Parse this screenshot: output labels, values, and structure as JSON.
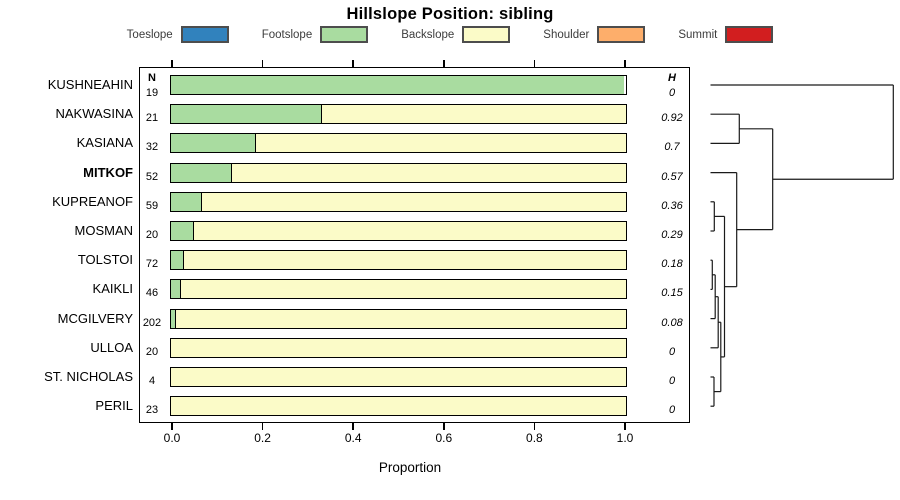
{
  "title": "Hillslope Position: sibling",
  "xlabel": "Proportion",
  "columns": {
    "n_header": "N",
    "h_header": "H"
  },
  "x_ticks": [
    "0.0",
    "0.2",
    "0.4",
    "0.6",
    "0.8",
    "1.0"
  ],
  "colors": {
    "toeslope": "#3182BD",
    "footslope": "#A9DCA0",
    "backslope": "#FBFBC8",
    "shoulder": "#FDAE6B",
    "summit": "#D21E1F",
    "bar_border": "#000000",
    "dendrogram_line": "#1a1a1a"
  },
  "legend": {
    "items": [
      {
        "label": "Toeslope",
        "color_key": "toeslope"
      },
      {
        "label": "Footslope",
        "color_key": "footslope"
      },
      {
        "label": "Backslope",
        "color_key": "backslope"
      },
      {
        "label": "Shoulder",
        "color_key": "shoulder"
      },
      {
        "label": "Summit",
        "color_key": "summit"
      }
    ]
  },
  "chart_data": {
    "type": "bar",
    "orientation": "horizontal-stacked",
    "title": "Hillslope Position: sibling",
    "xlabel": "Proportion",
    "xlim": [
      0,
      1
    ],
    "x_tick_values": [
      0.0,
      0.2,
      0.4,
      0.6,
      0.8,
      1.0
    ],
    "stack_categories": [
      "Toeslope",
      "Footslope",
      "Backslope",
      "Shoulder",
      "Summit"
    ],
    "rows": [
      {
        "label": "KUSHNEAHIN",
        "n": "19",
        "h": "0",
        "bold": false,
        "footslope": 1.0,
        "backslope": 0.0
      },
      {
        "label": "NAKWASINA",
        "n": "21",
        "h": "0.92",
        "bold": false,
        "footslope": 0.333,
        "backslope": 0.667
      },
      {
        "label": "KASIANA",
        "n": "32",
        "h": "0.7",
        "bold": false,
        "footslope": 0.188,
        "backslope": 0.812
      },
      {
        "label": "MITKOF",
        "n": "52",
        "h": "0.57",
        "bold": true,
        "footslope": 0.135,
        "backslope": 0.865
      },
      {
        "label": "KUPREANOF",
        "n": "59",
        "h": "0.36",
        "bold": false,
        "footslope": 0.068,
        "backslope": 0.932
      },
      {
        "label": "MOSMAN",
        "n": "20",
        "h": "0.29",
        "bold": false,
        "footslope": 0.05,
        "backslope": 0.95
      },
      {
        "label": "TOLSTOI",
        "n": "72",
        "h": "0.18",
        "bold": false,
        "footslope": 0.028,
        "backslope": 0.972
      },
      {
        "label": "KAIKLI",
        "n": "46",
        "h": "0.15",
        "bold": false,
        "footslope": 0.022,
        "backslope": 0.978
      },
      {
        "label": "MCGILVERY",
        "n": "202",
        "h": "0.08",
        "bold": false,
        "footslope": 0.01,
        "backslope": 0.99
      },
      {
        "label": "ULLOA",
        "n": "20",
        "h": "0",
        "bold": false,
        "footslope": 0.0,
        "backslope": 1.0
      },
      {
        "label": "ST. NICHOLAS",
        "n": "4",
        "h": "0",
        "bold": false,
        "footslope": 0.0,
        "backslope": 1.0
      },
      {
        "label": "PERIL",
        "n": "23",
        "h": "0",
        "bold": false,
        "footslope": 0.0,
        "backslope": 1.0
      }
    ],
    "dendrogram": {
      "position": "right",
      "leaf_order": [
        "KUSHNEAHIN",
        "NAKWASINA",
        "KASIANA",
        "MITKOF",
        "KUPREANOF",
        "MOSMAN",
        "TOLSTOI",
        "KAIKLI",
        "MCGILVERY",
        "ULLOA",
        "ST. NICHOLAS",
        "PERIL"
      ],
      "merges": [
        {
          "children": [
            "leaf:TOLSTOI",
            "leaf:KAIKLI"
          ],
          "height_frac": 0.0098
        },
        {
          "children": [
            "node:0",
            "leaf:MCGILVERY"
          ],
          "height_frac": 0.0257
        },
        {
          "children": [
            "node:1",
            "leaf:ULLOA"
          ],
          "height_frac": 0.0421
        },
        {
          "children": [
            "leaf:ST. NICHOLAS",
            "leaf:PERIL"
          ],
          "height_frac": 0.0191
        },
        {
          "children": [
            "node:2",
            "node:3"
          ],
          "height_frac": 0.0563
        },
        {
          "children": [
            "leaf:KUPREANOF",
            "leaf:MOSMAN"
          ],
          "height_frac": 0.0208
        },
        {
          "children": [
            "node:5",
            "node:4"
          ],
          "height_frac": 0.0766
        },
        {
          "children": [
            "leaf:MITKOF",
            "node:6"
          ],
          "height_frac": 0.1433
        },
        {
          "children": [
            "leaf:NAKWASINA",
            "leaf:KASIANA"
          ],
          "height_frac": 0.1575
        },
        {
          "children": [
            "node:8",
            "node:7"
          ],
          "height_frac": 0.3402
        },
        {
          "children": [
            "leaf:KUSHNEAHIN",
            "node:9"
          ],
          "height_frac": 1.0
        }
      ]
    }
  }
}
